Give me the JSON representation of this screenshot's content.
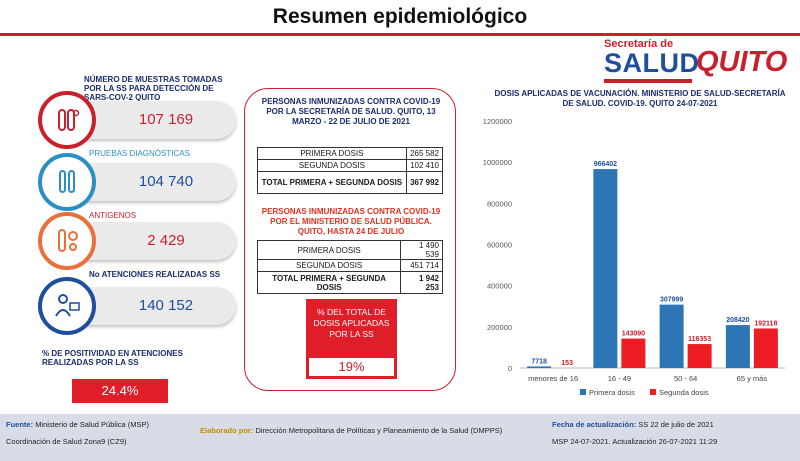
{
  "title": "Resumen epidemiológico",
  "logo": {
    "top": "Secretaría de",
    "main": "SALUD",
    "brand": "QUITO"
  },
  "stats": [
    {
      "label": "NÚMERO DE MUESTRAS TOMADAS POR LA SS PARA DETECCIÓN DE SARS-COV-2 QUITO",
      "value": "107 169",
      "color": "#c9202e",
      "icon": "test-tubes-icon"
    },
    {
      "label": "PRUEBAS DIAGNÓSTICAS",
      "value": "104 740",
      "color": "#2c8fc4",
      "icon": "test-tubes-icon"
    },
    {
      "label": "ANTIGENOS",
      "value": "2 429",
      "color": "#e8703a",
      "icon": "test-tube-gear-icon"
    },
    {
      "label": "No ATENCIONES REALIZADAS SS",
      "value": "140 152",
      "color": "#1f4e9c",
      "icon": "doctor-computer-icon"
    }
  ],
  "positivity": {
    "label": "% DE POSITIVIDAD EN ATENCIONES REALIZADAS POR LA SS",
    "value": "24.4%"
  },
  "center": {
    "section1_title": "PERSONAS INMUNIZADAS CONTRA COVID-19 POR LA SECRETARÍA DE SALUD. QUITO, 13 MARZO - 22 DE JULIO DE 2021",
    "table1": [
      {
        "label": "PRIMERA DOSIS",
        "value": "265 582"
      },
      {
        "label": "SEGUNDA DOSIS",
        "value": "102 410"
      },
      {
        "label": "TOTAL PRIMERA + SEGUNDA DOSIS",
        "value": "367 992"
      }
    ],
    "section2_title": "PERSONAS INMUNIZADAS CONTRA COVID-19 POR EL MINISTERIO DE SALUD PÚBLICA. QUITO, HASTA 24 DE JULIO",
    "table2": [
      {
        "label": "PRIMERA DOSIS",
        "value": "1 490 539"
      },
      {
        "label": "SEGUNDA DOSIS",
        "value": "451 714"
      },
      {
        "label": "TOTAL PRIMERA + SEGUNDA DOSIS",
        "value": "1 942 253"
      }
    ],
    "pct_label": "% DEL TOTAL DE DOSIS APLICADAS POR LA SS",
    "pct_value": "19%"
  },
  "chart_data": {
    "type": "bar",
    "title": "DOSIS APLICADAS DE VACUNACIÓN. MINISTERIO DE SALUD-SECRETARÍA DE SALUD. COVID-19. QUITO 24-07-2021",
    "categories": [
      "menores de 16",
      "16 - 49",
      "50 - 64",
      "65 y más"
    ],
    "series": [
      {
        "name": "Primera dosis",
        "color": "#2e75b6",
        "values": [
          7718,
          966402,
          307999,
          208420
        ]
      },
      {
        "name": "Segunda dosis",
        "color": "#ee1c25",
        "values": [
          153,
          143090,
          116353,
          192118
        ]
      }
    ],
    "data_labels": [
      [
        "7718",
        "966402",
        "307999",
        "208420"
      ],
      [
        "153",
        "143090",
        "116353",
        "192118"
      ]
    ],
    "ylim": [
      0,
      1200000
    ],
    "yticks": [
      "0",
      "200000",
      "400000",
      "600000",
      "800000",
      "1000000",
      "1200000"
    ],
    "legend_position": "bottom",
    "grid": false
  },
  "footer": {
    "fuente_label": "Fuente:",
    "fuente_text": "Ministerio de Salud Pública (MSP)",
    "fuente_text2": "Coordinación de Salud Zona9 (CZ9)",
    "elaborado_label": "Elaborado por:",
    "elaborado_text": "Dirección Metropolitana de Políticas y Planeamiento de la Salud (DMPPS)",
    "fecha_label": "Fecha de actualización:",
    "fecha_text": "SS 22 de julio de 2021",
    "fecha_text2": "MSP 24-07-2021. Actualización 26-07-2021 11:29"
  }
}
